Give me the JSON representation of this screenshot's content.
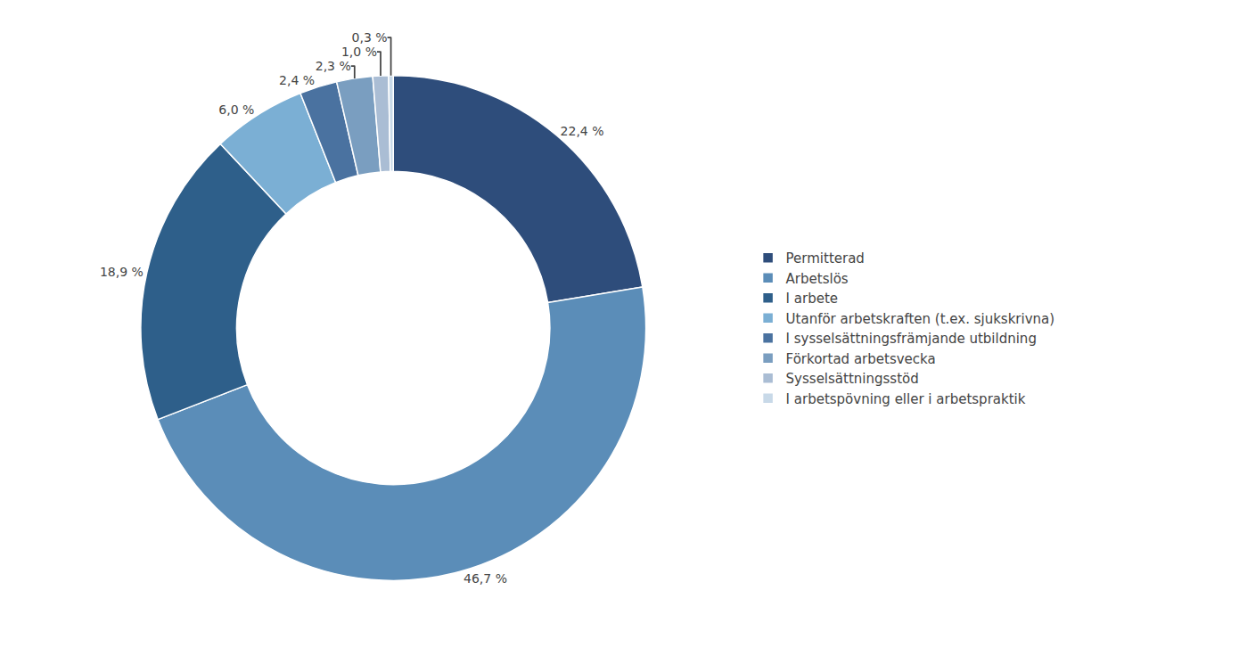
{
  "chart_data": {
    "type": "donut",
    "categories": [
      "Permitterad",
      "Arbetslös",
      "I arbete",
      "Utanför arbetskraften (t.ex. sjukskrivna)",
      "I sysselsättningsfrämjande utbildning",
      "Förkortad arbetsvecka",
      "Sysselsättningsstöd",
      "I arbetspövning eller i arbetspraktik"
    ],
    "values": [
      22.4,
      46.7,
      18.9,
      6.0,
      2.4,
      2.3,
      1.0,
      0.3
    ],
    "value_labels": [
      "22,4 %",
      "46,7 %",
      "18,9 %",
      "6,0 %",
      "2,4 %",
      "2,3 %",
      "1,0 %",
      "0,3 %"
    ],
    "colors": [
      "#2E4D7B",
      "#5B8DB8",
      "#2E5F8A",
      "#7BAFD4",
      "#4A72A0",
      "#7A9EC0",
      "#AABDD4",
      "#C8D9E8"
    ],
    "data_labels": true,
    "legend": "right"
  }
}
